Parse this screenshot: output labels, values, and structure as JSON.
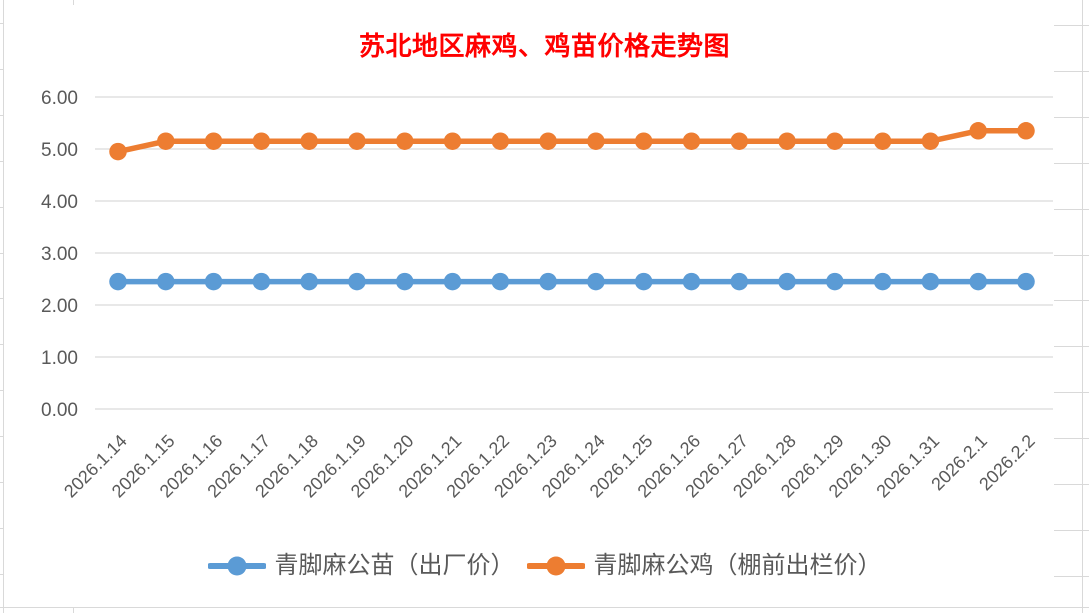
{
  "colors": {
    "title": "#FF0000",
    "axis_text": "#595959",
    "legend_text": "#595959",
    "gridline": "#D9D9D9",
    "series_blue": "#5B9BD5",
    "series_orange": "#ED7D31"
  },
  "chart_data": {
    "type": "line",
    "title": "苏北地区麻鸡、鸡苗价格走势图",
    "categories": [
      "2026.1.14",
      "2026.1.15",
      "2026.1.16",
      "2026.1.17",
      "2026.1.18",
      "2026.1.19",
      "2026.1.20",
      "2026.1.21",
      "2026.1.22",
      "2026.1.23",
      "2026.1.24",
      "2026.1.25",
      "2026.1.26",
      "2026.1.27",
      "2026.1.28",
      "2026.1.29",
      "2026.1.30",
      "2026.1.31",
      "2026.2.1",
      "2026.2.2"
    ],
    "series": [
      {
        "name": "青脚麻公苗（出厂价）",
        "color": "#5B9BD5",
        "marker": "circle",
        "values": [
          2.45,
          2.45,
          2.45,
          2.45,
          2.45,
          2.45,
          2.45,
          2.45,
          2.45,
          2.45,
          2.45,
          2.45,
          2.45,
          2.45,
          2.45,
          2.45,
          2.45,
          2.45,
          2.45,
          2.45
        ]
      },
      {
        "name": "青脚麻公鸡（棚前出栏价）",
        "color": "#ED7D31",
        "marker": "circle",
        "values": [
          4.95,
          5.15,
          5.15,
          5.15,
          5.15,
          5.15,
          5.15,
          5.15,
          5.15,
          5.15,
          5.15,
          5.15,
          5.15,
          5.15,
          5.15,
          5.15,
          5.15,
          5.15,
          5.35,
          5.35
        ]
      }
    ],
    "xlabel": "",
    "ylabel": "",
    "ylim": [
      0,
      6
    ],
    "ytick_step": 1,
    "ytick_labels": [
      "0.00",
      "1.00",
      "2.00",
      "3.00",
      "4.00",
      "5.00",
      "6.00"
    ],
    "grid": true,
    "legend_position": "bottom",
    "x_tick_rotation": -45
  }
}
